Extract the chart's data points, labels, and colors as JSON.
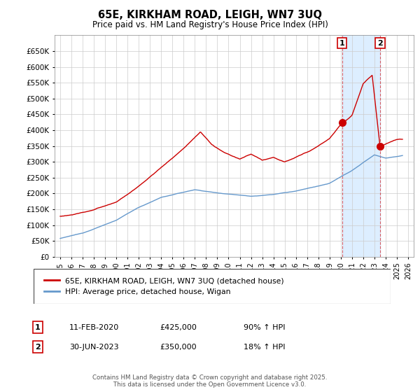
{
  "title": "65E, KIRKHAM ROAD, LEIGH, WN7 3UQ",
  "subtitle": "Price paid vs. HM Land Registry's House Price Index (HPI)",
  "legend_line1": "65E, KIRKHAM ROAD, LEIGH, WN7 3UQ (detached house)",
  "legend_line2": "HPI: Average price, detached house, Wigan",
  "annotation1_label": "1",
  "annotation1_date": "11-FEB-2020",
  "annotation1_price": "£425,000",
  "annotation1_hpi": "90% ↑ HPI",
  "annotation2_label": "2",
  "annotation2_date": "30-JUN-2023",
  "annotation2_price": "£350,000",
  "annotation2_hpi": "18% ↑ HPI",
  "footer": "Contains HM Land Registry data © Crown copyright and database right 2025.\nThis data is licensed under the Open Government Licence v3.0.",
  "red_color": "#cc0000",
  "blue_color": "#6699cc",
  "shade_color": "#ddeeff",
  "background_color": "#eef4fb",
  "plot_bg": "#ffffff",
  "ylim": [
    0,
    700000
  ],
  "yticks": [
    0,
    50000,
    100000,
    150000,
    200000,
    250000,
    300000,
    350000,
    400000,
    450000,
    500000,
    550000,
    600000,
    650000
  ],
  "marker1_x": 2020.12,
  "marker1_y": 425000,
  "marker2_x": 2023.5,
  "marker2_y": 350000,
  "vline1_x": 2020.12,
  "vline2_x": 2023.5,
  "xmin": 1994.5,
  "xmax": 2026.5
}
